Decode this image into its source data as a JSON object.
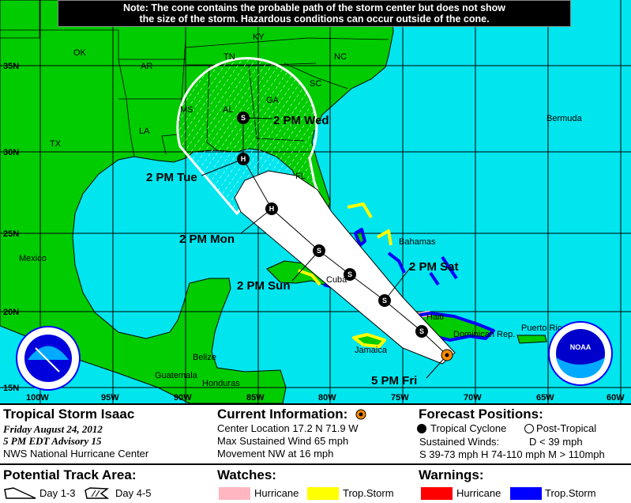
{
  "note": {
    "line1": "Note: The cone contains the probable path of the storm center but does not show",
    "line2": "the size of the storm. Hazardous conditions can occur outside of the cone."
  },
  "map": {
    "colors": {
      "water": "#00e5ee",
      "land": "#00cc00",
      "cone": "#ffffff",
      "hurricane_watch": "#ffb6c1",
      "ts_watch": "#ffff00",
      "hurricane_warning": "#ff0000",
      "ts_warning": "#0000ff",
      "current": "#ff8c00"
    },
    "lat_labels": [
      "35N",
      "30N",
      "25N",
      "20N",
      "15N"
    ],
    "lon_labels": [
      "100W",
      "95W",
      "90W",
      "85W",
      "80W",
      "75W",
      "70W",
      "65W",
      "60W"
    ],
    "regions": {
      "ky": "KY",
      "ok": "OK",
      "ar": "AR",
      "tn": "TN",
      "nc": "NC",
      "sc": "SC",
      "ms": "MS",
      "al": "AL",
      "ga": "GA",
      "la": "LA",
      "tx": "TX",
      "fl": "FL",
      "bermuda": "Bermuda",
      "mexico": "Mexico",
      "bahamas": "Bahamas",
      "cuba": "Cuba",
      "haiti": "Haiti",
      "dominican": "Dominican Rep.",
      "puerto_rico": "Puerto Rico",
      "jamaica": "Jamaica",
      "belize": "Belize",
      "guatemala": "Guatemala",
      "honduras": "Honduras"
    },
    "track": [
      {
        "label": "5 PM Fri",
        "type": "current"
      },
      {
        "label": "",
        "intensity": "S"
      },
      {
        "label": "2 PM Sat",
        "intensity": "S"
      },
      {
        "label": "",
        "intensity": "S"
      },
      {
        "label": "2 PM Sun",
        "intensity": "S"
      },
      {
        "label": "2 PM Mon",
        "intensity": "H"
      },
      {
        "label": "2 PM Tue",
        "intensity": "H"
      },
      {
        "label": "2 PM Wed",
        "intensity": "S"
      }
    ],
    "logos": {
      "nws": "NATIONAL WEATHER SERVICE",
      "noaa": "NOAA"
    }
  },
  "info": {
    "storm_name": "Tropical Storm Isaac",
    "date": "Friday   August 24, 2012",
    "advisory": "5 PM EDT Advisory 15",
    "center": "NWS National Hurricane Center",
    "current_title": "Current Information:",
    "location": "Center Location 17.2 N  71.9 W",
    "max_wind": "Max Sustained Wind   65 mph",
    "movement": "Movement NW at  16 mph",
    "forecast_title": "Forecast Positions:",
    "tropical_cyclone": "Tropical Cyclone",
    "post_tropical": "Post-Tropical",
    "sustained_winds": "Sustained Winds:",
    "d_def": "D  < 39 mph",
    "s_h_m_def": "S  39-73 mph  H  74-110 mph  M  > 110mph"
  },
  "legend": {
    "track_title": "Potential Track Area:",
    "day13": "Day 1-3",
    "day45": "Day 4-5",
    "watches_title": "Watches:",
    "watch_hurricane": "Hurricane",
    "watch_ts": "Trop.Storm",
    "warnings_title": "Warnings:",
    "warning_hurricane": "Hurricane",
    "warning_ts": "Trop.Storm"
  }
}
